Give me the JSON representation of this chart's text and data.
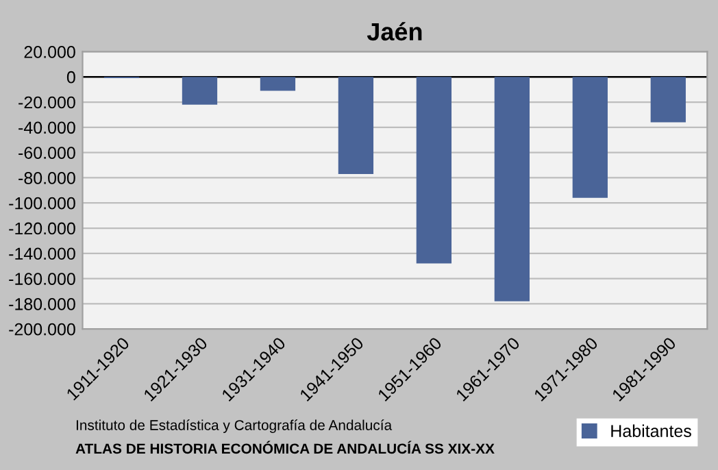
{
  "chart_data": {
    "type": "bar",
    "title": "Jaén",
    "categories": [
      "1911-1920",
      "1921-1930",
      "1931-1940",
      "1941-1950",
      "1951-1960",
      "1961-1970",
      "1971-1980",
      "1981-1990"
    ],
    "series": [
      {
        "name": "Habitantes",
        "color": "#4a6498",
        "values": [
          -1000,
          -22000,
          -11000,
          -77000,
          -148000,
          -178000,
          -96000,
          -36000
        ]
      }
    ],
    "ylim": [
      -200000,
      20000
    ],
    "yticks": [
      {
        "value": -200000,
        "label": "-200.000"
      },
      {
        "value": -180000,
        "label": "-180.000"
      },
      {
        "value": -160000,
        "label": "-160.000"
      },
      {
        "value": -140000,
        "label": "-140.000"
      },
      {
        "value": -120000,
        "label": "-120.000"
      },
      {
        "value": -100000,
        "label": "-100.000"
      },
      {
        "value": -80000,
        "label": "-80.000"
      },
      {
        "value": -60000,
        "label": "-60.000"
      },
      {
        "value": -40000,
        "label": "-40.000"
      },
      {
        "value": -20000,
        "label": "-20.000"
      },
      {
        "value": 0,
        "label": "0"
      },
      {
        "value": 20000,
        "label": "20.000"
      }
    ],
    "grid": "y",
    "legend": "bottom right",
    "annotations": [
      "Instituto de Estadística y Cartografía de Andalucía",
      "ATLAS DE HISTORIA ECONÓMICA DE ANDALUCÍA SS XIX-XX"
    ]
  }
}
